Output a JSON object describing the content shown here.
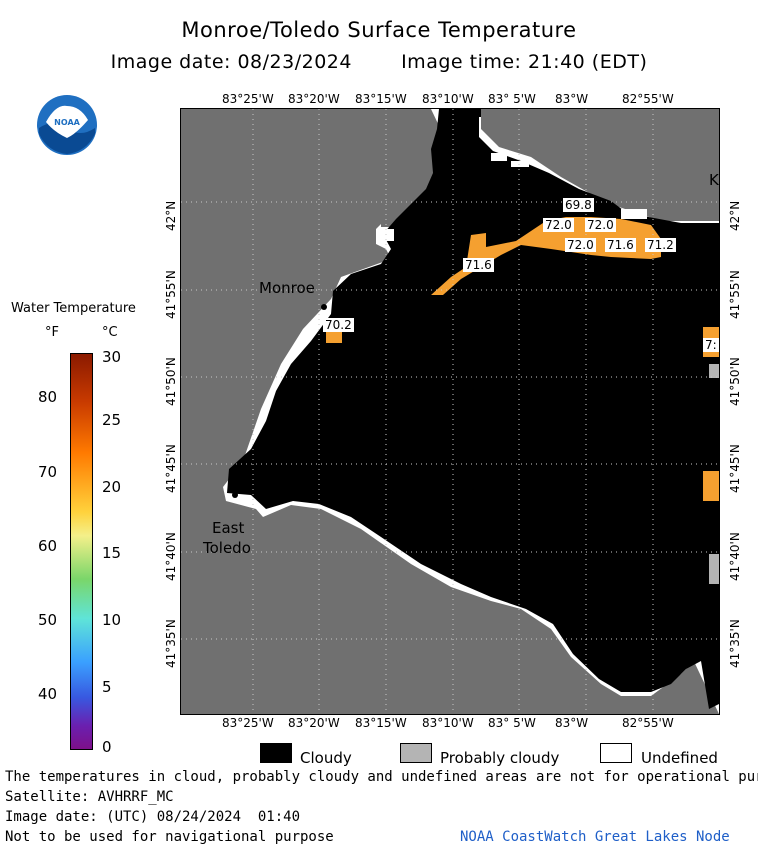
{
  "header": {
    "title": "Monroe/Toledo Surface Temperature",
    "image_date": "Image date: 08/23/2024",
    "image_time": "Image time: 21:40 (EDT)"
  },
  "logo": {
    "text": "NOAA",
    "icon": "noaa-logo-icon"
  },
  "legend": {
    "title": "Water Temperature",
    "unit_f": "°F",
    "unit_c": "°C",
    "f_ticks": [
      "80",
      "70",
      "60",
      "50",
      "40"
    ],
    "c_ticks": [
      "30",
      "25",
      "20",
      "15",
      "10",
      "5",
      "0"
    ]
  },
  "map": {
    "lon_ticks_top": [
      "83°25'W",
      "83°20'W",
      "83°15'W",
      "83°10'W",
      "83° 5'W",
      "83°W",
      "82°55'W"
    ],
    "lon_ticks_bottom": [
      "83°25'W",
      "83°20'W",
      "83°15'W",
      "83°10'W",
      "83° 5'W",
      "83°W",
      "82°55'W"
    ],
    "lat_ticks_left": [
      "42°N",
      "41°55'N",
      "41°50'N",
      "41°45'N",
      "41°40'N",
      "41°35'N"
    ],
    "lat_ticks_right": [
      "42°N",
      "41°55'N",
      "41°50'N",
      "41°45'N",
      "41°40'N",
      "41°35'N"
    ],
    "cities": {
      "monroe": "Monroe",
      "east_toledo_1": "East",
      "east_toledo_2": "Toledo",
      "k": "K"
    },
    "temperatures": [
      "69.8",
      "72.0",
      "72.0",
      "72.0",
      "71.6",
      "71.2",
      "71.6",
      "70.2",
      "7:"
    ],
    "colors": {
      "land": "#707070",
      "cloudy": "#000000",
      "probably_cloudy": "#b4b4b4",
      "undefined": "#ffffff",
      "warm_water": "#f5a030"
    }
  },
  "key": {
    "cloudy": "Cloudy",
    "probably_cloudy": "Probably cloudy",
    "undefined": "Undefined"
  },
  "footer": {
    "disclaimer": "The temperatures in cloud, probably cloudy and undefined areas are not for operational pur",
    "satellite": "Satellite: AVHRRF_MC",
    "utc_date": "Image date: (UTC) 08/24/2024  01:40",
    "nav": "Not to be used for navigational purpose",
    "credit": "NOAA CoastWatch Great Lakes Node"
  }
}
